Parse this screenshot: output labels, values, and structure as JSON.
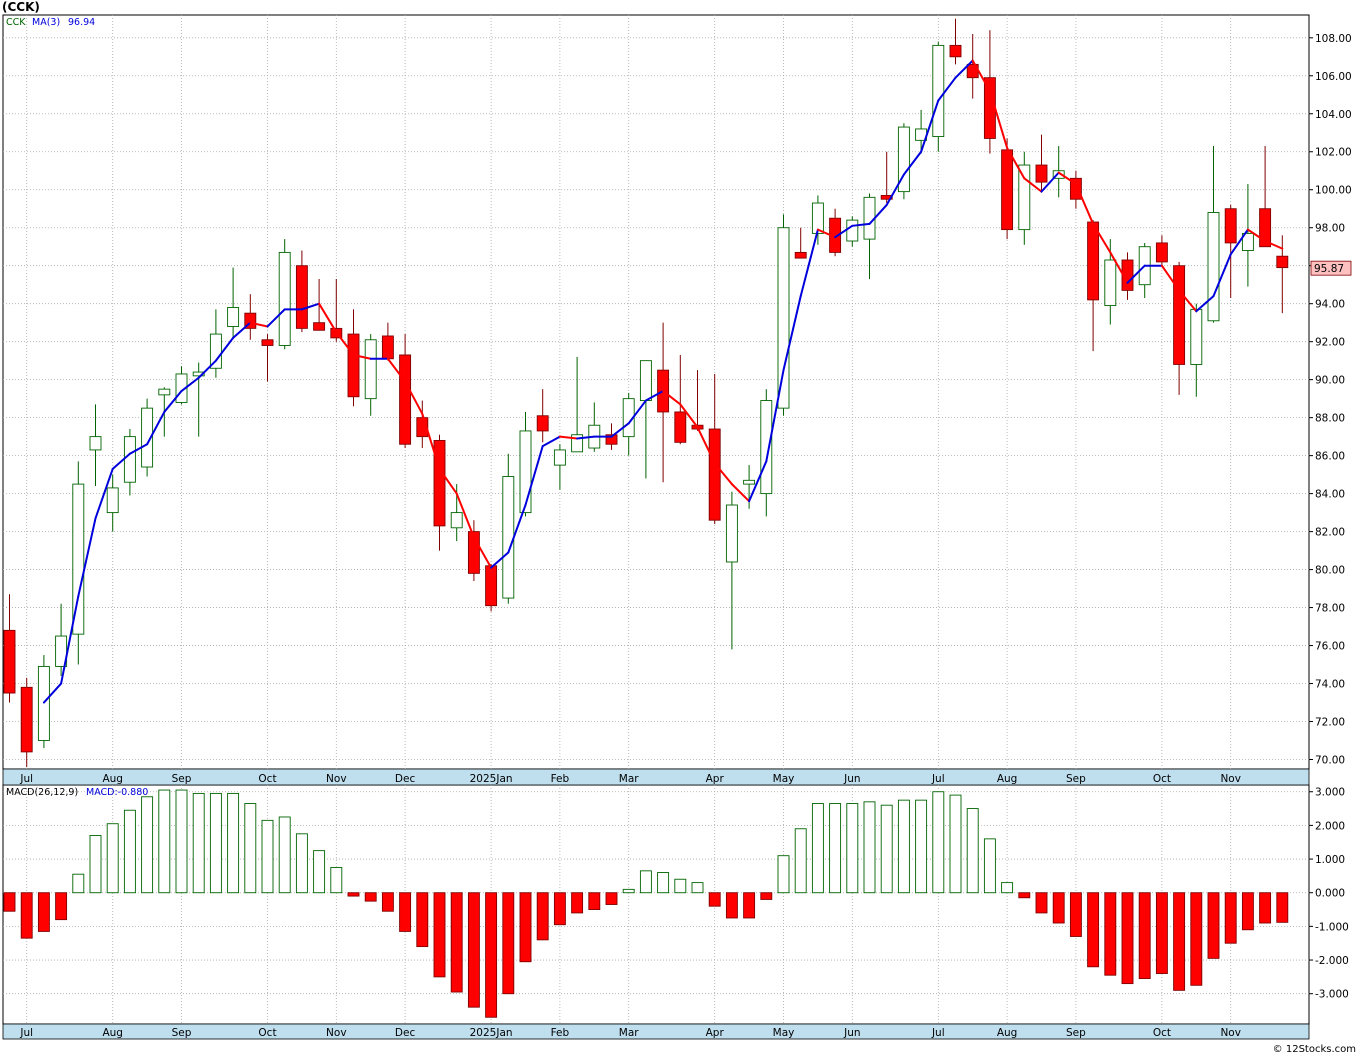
{
  "header": {
    "symbol_title": "(CCK)"
  },
  "footer": {
    "credit": "© 12Stocks.com"
  },
  "colors": {
    "up_body": "#ffffff",
    "up_outline": "#006400",
    "down_body": "#ff0000",
    "down_outline": "#800000",
    "ma_up": "#0000dd",
    "ma_down": "#ff0000",
    "axis_band": "#bfdfef",
    "grid": "#aaaaaa",
    "price_badge": "#ffc0c0"
  },
  "chart_data": [
    {
      "type": "candlestick",
      "legend": {
        "symbol": "CCK",
        "ma_label": "MA(3)",
        "ma_value": "96.94"
      },
      "last_price_label": "95.87",
      "ylim": [
        69.5,
        109.2
      ],
      "y_ticks": [
        "70.00",
        "72.00",
        "74.00",
        "76.00",
        "78.00",
        "80.00",
        "82.00",
        "84.00",
        "86.00",
        "88.00",
        "90.00",
        "92.00",
        "94.00",
        "96.00",
        "98.00",
        "100.00",
        "102.00",
        "104.00",
        "106.00",
        "108.00"
      ],
      "x_labels": [
        {
          "label": "Jul",
          "week": 1
        },
        {
          "label": "Aug",
          "week": 6
        },
        {
          "label": "Sep",
          "week": 10
        },
        {
          "label": "Oct",
          "week": 15
        },
        {
          "label": "Nov",
          "week": 19
        },
        {
          "label": "Dec",
          "week": 23
        },
        {
          "label": "2025Jan",
          "week": 28
        },
        {
          "label": "Feb",
          "week": 32
        },
        {
          "label": "Mar",
          "week": 36
        },
        {
          "label": "Apr",
          "week": 41
        },
        {
          "label": "May",
          "week": 45
        },
        {
          "label": "Jun",
          "week": 49
        },
        {
          "label": "Jul",
          "week": 54
        },
        {
          "label": "Aug",
          "week": 58
        },
        {
          "label": "Sep",
          "week": 62
        },
        {
          "label": "Oct",
          "week": 67
        },
        {
          "label": "Nov",
          "week": 71
        }
      ],
      "candles": [
        [
          76.8,
          78.7,
          73.0,
          73.5
        ],
        [
          73.8,
          74.3,
          69.6,
          70.4
        ],
        [
          71.0,
          75.5,
          70.6,
          74.9
        ],
        [
          74.9,
          78.2,
          74.4,
          76.5
        ],
        [
          76.6,
          85.7,
          75.0,
          84.5
        ],
        [
          86.3,
          88.7,
          84.4,
          87.0
        ],
        [
          83.0,
          85.0,
          82.0,
          84.3
        ],
        [
          84.6,
          87.4,
          83.9,
          87.0
        ],
        [
          85.4,
          89.0,
          84.9,
          88.5
        ],
        [
          89.2,
          89.6,
          87.0,
          89.5
        ],
        [
          88.8,
          90.7,
          88.7,
          90.3
        ],
        [
          90.2,
          90.9,
          87.0,
          90.4
        ],
        [
          90.6,
          93.7,
          90.1,
          92.4
        ],
        [
          92.8,
          95.9,
          92.2,
          93.8
        ],
        [
          93.5,
          94.5,
          92.1,
          92.7
        ],
        [
          92.1,
          92.4,
          89.9,
          91.8
        ],
        [
          91.8,
          97.4,
          91.6,
          96.7
        ],
        [
          96.0,
          96.8,
          92.5,
          92.7
        ],
        [
          93.0,
          95.3,
          92.6,
          92.6
        ],
        [
          92.7,
          95.3,
          92.0,
          92.2
        ],
        [
          92.4,
          93.7,
          88.6,
          89.1
        ],
        [
          89.0,
          92.4,
          88.1,
          92.1
        ],
        [
          92.3,
          93.0,
          91.0,
          91.1
        ],
        [
          91.3,
          92.4,
          86.4,
          86.6
        ],
        [
          88.0,
          88.9,
          86.4,
          87.0
        ],
        [
          86.8,
          87.1,
          81.0,
          82.3
        ],
        [
          82.2,
          84.5,
          81.5,
          83.0
        ],
        [
          82.0,
          82.6,
          79.4,
          79.8
        ],
        [
          80.2,
          80.3,
          77.8,
          78.1
        ],
        [
          78.5,
          86.1,
          78.2,
          84.9
        ],
        [
          83.0,
          88.3,
          82.8,
          87.3
        ],
        [
          88.1,
          89.5,
          86.7,
          87.3
        ],
        [
          85.5,
          86.6,
          84.2,
          86.3
        ],
        [
          86.2,
          91.2,
          86.2,
          87.1
        ],
        [
          86.4,
          88.8,
          86.2,
          87.6
        ],
        [
          87.1,
          87.7,
          86.3,
          86.6
        ],
        [
          87.0,
          89.3,
          86.0,
          89.0
        ],
        [
          88.9,
          91.0,
          84.8,
          91.0
        ],
        [
          90.5,
          93.0,
          84.6,
          88.3
        ],
        [
          88.3,
          91.3,
          86.6,
          86.7
        ],
        [
          87.6,
          90.5,
          87.3,
          87.4
        ],
        [
          87.4,
          90.3,
          82.4,
          82.6
        ],
        [
          80.4,
          84.1,
          75.8,
          83.4
        ],
        [
          84.5,
          85.5,
          83.2,
          84.7
        ],
        [
          84.0,
          89.5,
          82.8,
          88.9
        ],
        [
          88.5,
          98.7,
          88.1,
          98.0
        ],
        [
          96.7,
          98.0,
          96.5,
          96.4
        ],
        [
          97.7,
          99.7,
          97.1,
          99.3
        ],
        [
          98.5,
          99.0,
          96.5,
          96.7
        ],
        [
          97.3,
          98.6,
          97.0,
          98.4
        ],
        [
          97.4,
          99.8,
          95.3,
          99.6
        ],
        [
          99.7,
          102.0,
          99.3,
          99.5
        ],
        [
          99.9,
          103.5,
          99.5,
          103.3
        ],
        [
          102.6,
          104.2,
          101.9,
          103.2
        ],
        [
          102.8,
          107.8,
          102.0,
          107.6
        ],
        [
          107.6,
          109.0,
          106.6,
          107.0
        ],
        [
          106.6,
          108.2,
          104.8,
          105.9
        ],
        [
          105.9,
          108.4,
          101.9,
          102.7
        ],
        [
          102.1,
          102.7,
          97.4,
          97.9
        ],
        [
          97.9,
          102.0,
          97.1,
          101.3
        ],
        [
          101.3,
          102.9,
          99.9,
          100.4
        ],
        [
          100.6,
          102.3,
          99.6,
          101.0
        ],
        [
          100.6,
          101.0,
          99.0,
          99.5
        ],
        [
          98.3,
          98.4,
          91.5,
          94.2
        ],
        [
          93.9,
          97.4,
          92.9,
          96.3
        ],
        [
          96.3,
          96.7,
          94.2,
          94.7
        ],
        [
          95.0,
          97.2,
          94.3,
          97.0
        ],
        [
          97.2,
          97.6,
          96.0,
          96.2
        ],
        [
          96.0,
          96.2,
          89.2,
          90.8
        ],
        [
          90.8,
          94.0,
          89.1,
          93.7
        ],
        [
          93.1,
          102.3,
          93.0,
          98.8
        ],
        [
          99.0,
          99.2,
          94.3,
          97.2
        ],
        [
          96.8,
          100.3,
          94.9,
          97.7
        ],
        [
          99.0,
          102.3,
          97.1,
          97.0
        ],
        [
          96.5,
          97.6,
          93.5,
          95.9
        ]
      ],
      "ma3": [
        null,
        null,
        73.0,
        74.0,
        78.6,
        82.7,
        85.3,
        86.1,
        86.6,
        88.3,
        89.4,
        90.1,
        91.0,
        92.2,
        93.0,
        92.8,
        93.7,
        93.7,
        94.0,
        92.5,
        91.3,
        91.1,
        91.1,
        89.9,
        88.2,
        85.3,
        84.0,
        81.7,
        80.1,
        80.9,
        83.4,
        86.5,
        87.0,
        86.9,
        87.0,
        87.0,
        87.7,
        88.9,
        89.4,
        88.7,
        87.5,
        85.6,
        84.5,
        83.6,
        85.7,
        90.5,
        94.4,
        97.9,
        97.5,
        98.1,
        98.2,
        99.2,
        100.8,
        102.0,
        104.7,
        105.9,
        106.8,
        105.2,
        102.2,
        100.6,
        99.9,
        100.9,
        100.3,
        98.2,
        96.7,
        95.1,
        96.0,
        96.0,
        94.7,
        93.6,
        94.4,
        96.6,
        97.9,
        97.3,
        96.9
      ]
    },
    {
      "type": "bar",
      "legend": {
        "label": "MACD(26,12,9)",
        "value_label": "MACD:-0.880"
      },
      "ylim": [
        -3.9,
        3.2
      ],
      "y_ticks": [
        "3.000",
        "2.000",
        "1.000",
        "0.000",
        "-1.000",
        "-2.000",
        "-3.000"
      ],
      "values": [
        -0.55,
        -1.35,
        -1.15,
        -0.8,
        0.55,
        1.7,
        2.05,
        2.45,
        2.85,
        3.05,
        3.05,
        2.95,
        2.95,
        2.95,
        2.65,
        2.15,
        2.25,
        1.75,
        1.25,
        0.75,
        -0.1,
        -0.25,
        -0.55,
        -1.15,
        -1.6,
        -2.5,
        -2.95,
        -3.4,
        -3.7,
        -3.0,
        -2.05,
        -1.4,
        -0.95,
        -0.6,
        -0.5,
        -0.35,
        0.1,
        0.65,
        0.6,
        0.4,
        0.3,
        -0.4,
        -0.75,
        -0.75,
        -0.2,
        1.1,
        1.9,
        2.65,
        2.65,
        2.65,
        2.7,
        2.6,
        2.75,
        2.75,
        3.0,
        2.9,
        2.5,
        1.6,
        0.3,
        -0.15,
        -0.6,
        -0.9,
        -1.3,
        -2.2,
        -2.45,
        -2.7,
        -2.55,
        -2.4,
        -2.9,
        -2.75,
        -1.95,
        -1.5,
        -1.1,
        -0.9,
        -0.88
      ]
    }
  ]
}
